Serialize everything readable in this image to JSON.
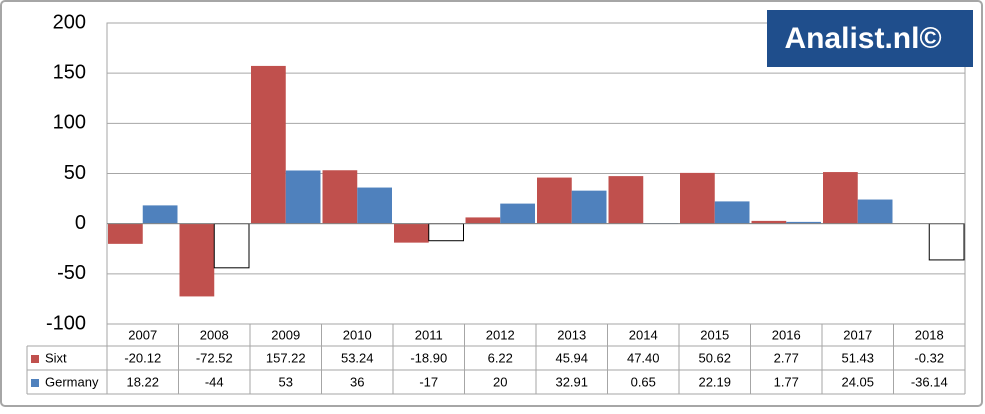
{
  "chart_data": {
    "type": "bar",
    "categories": [
      "2007",
      "2008",
      "2009",
      "2010",
      "2011",
      "2012",
      "2013",
      "2014",
      "2015",
      "2016",
      "2017",
      "2018"
    ],
    "series": [
      {
        "name": "Sixt",
        "color": "#c0504d",
        "values": [
          -20.12,
          -72.52,
          157.22,
          53.24,
          -18.9,
          6.22,
          45.94,
          47.4,
          50.62,
          2.77,
          51.43,
          -0.32
        ],
        "value_labels": [
          "-20.12",
          "-72.52",
          "157.22",
          "53.24",
          "-18.90",
          "6.22",
          "45.94",
          "47.40",
          "50.62",
          "2.77",
          "51.43",
          "-0.32"
        ]
      },
      {
        "name": "Germany",
        "color": "#4f81bd",
        "invert_if_negative": true,
        "values": [
          18.22,
          -44,
          53,
          36,
          -17,
          20,
          32.91,
          0.65,
          22.19,
          1.77,
          24.05,
          -36.14
        ]
      }
    ],
    "ylim": [
      -100,
      200
    ],
    "yticks": [
      -100,
      -50,
      0,
      50,
      100,
      150,
      200
    ],
    "grid": true,
    "watermark": "Analist.nl©"
  }
}
